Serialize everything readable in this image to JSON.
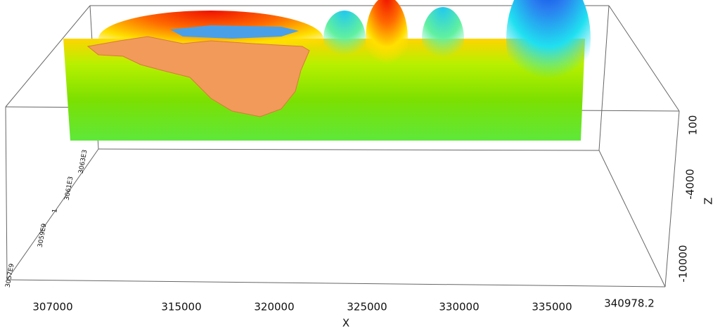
{
  "axes": {
    "x": {
      "label": "X",
      "ticks": [
        307000,
        315000,
        320000,
        325000,
        330000,
        335000,
        340978.2
      ]
    },
    "y": {
      "ticks": [
        "3063E3",
        "3061E3",
        "1",
        "3059E9",
        "3057E9"
      ]
    },
    "z": {
      "label": "Z",
      "ticks": [
        100,
        -4000,
        -10000
      ]
    }
  }
}
